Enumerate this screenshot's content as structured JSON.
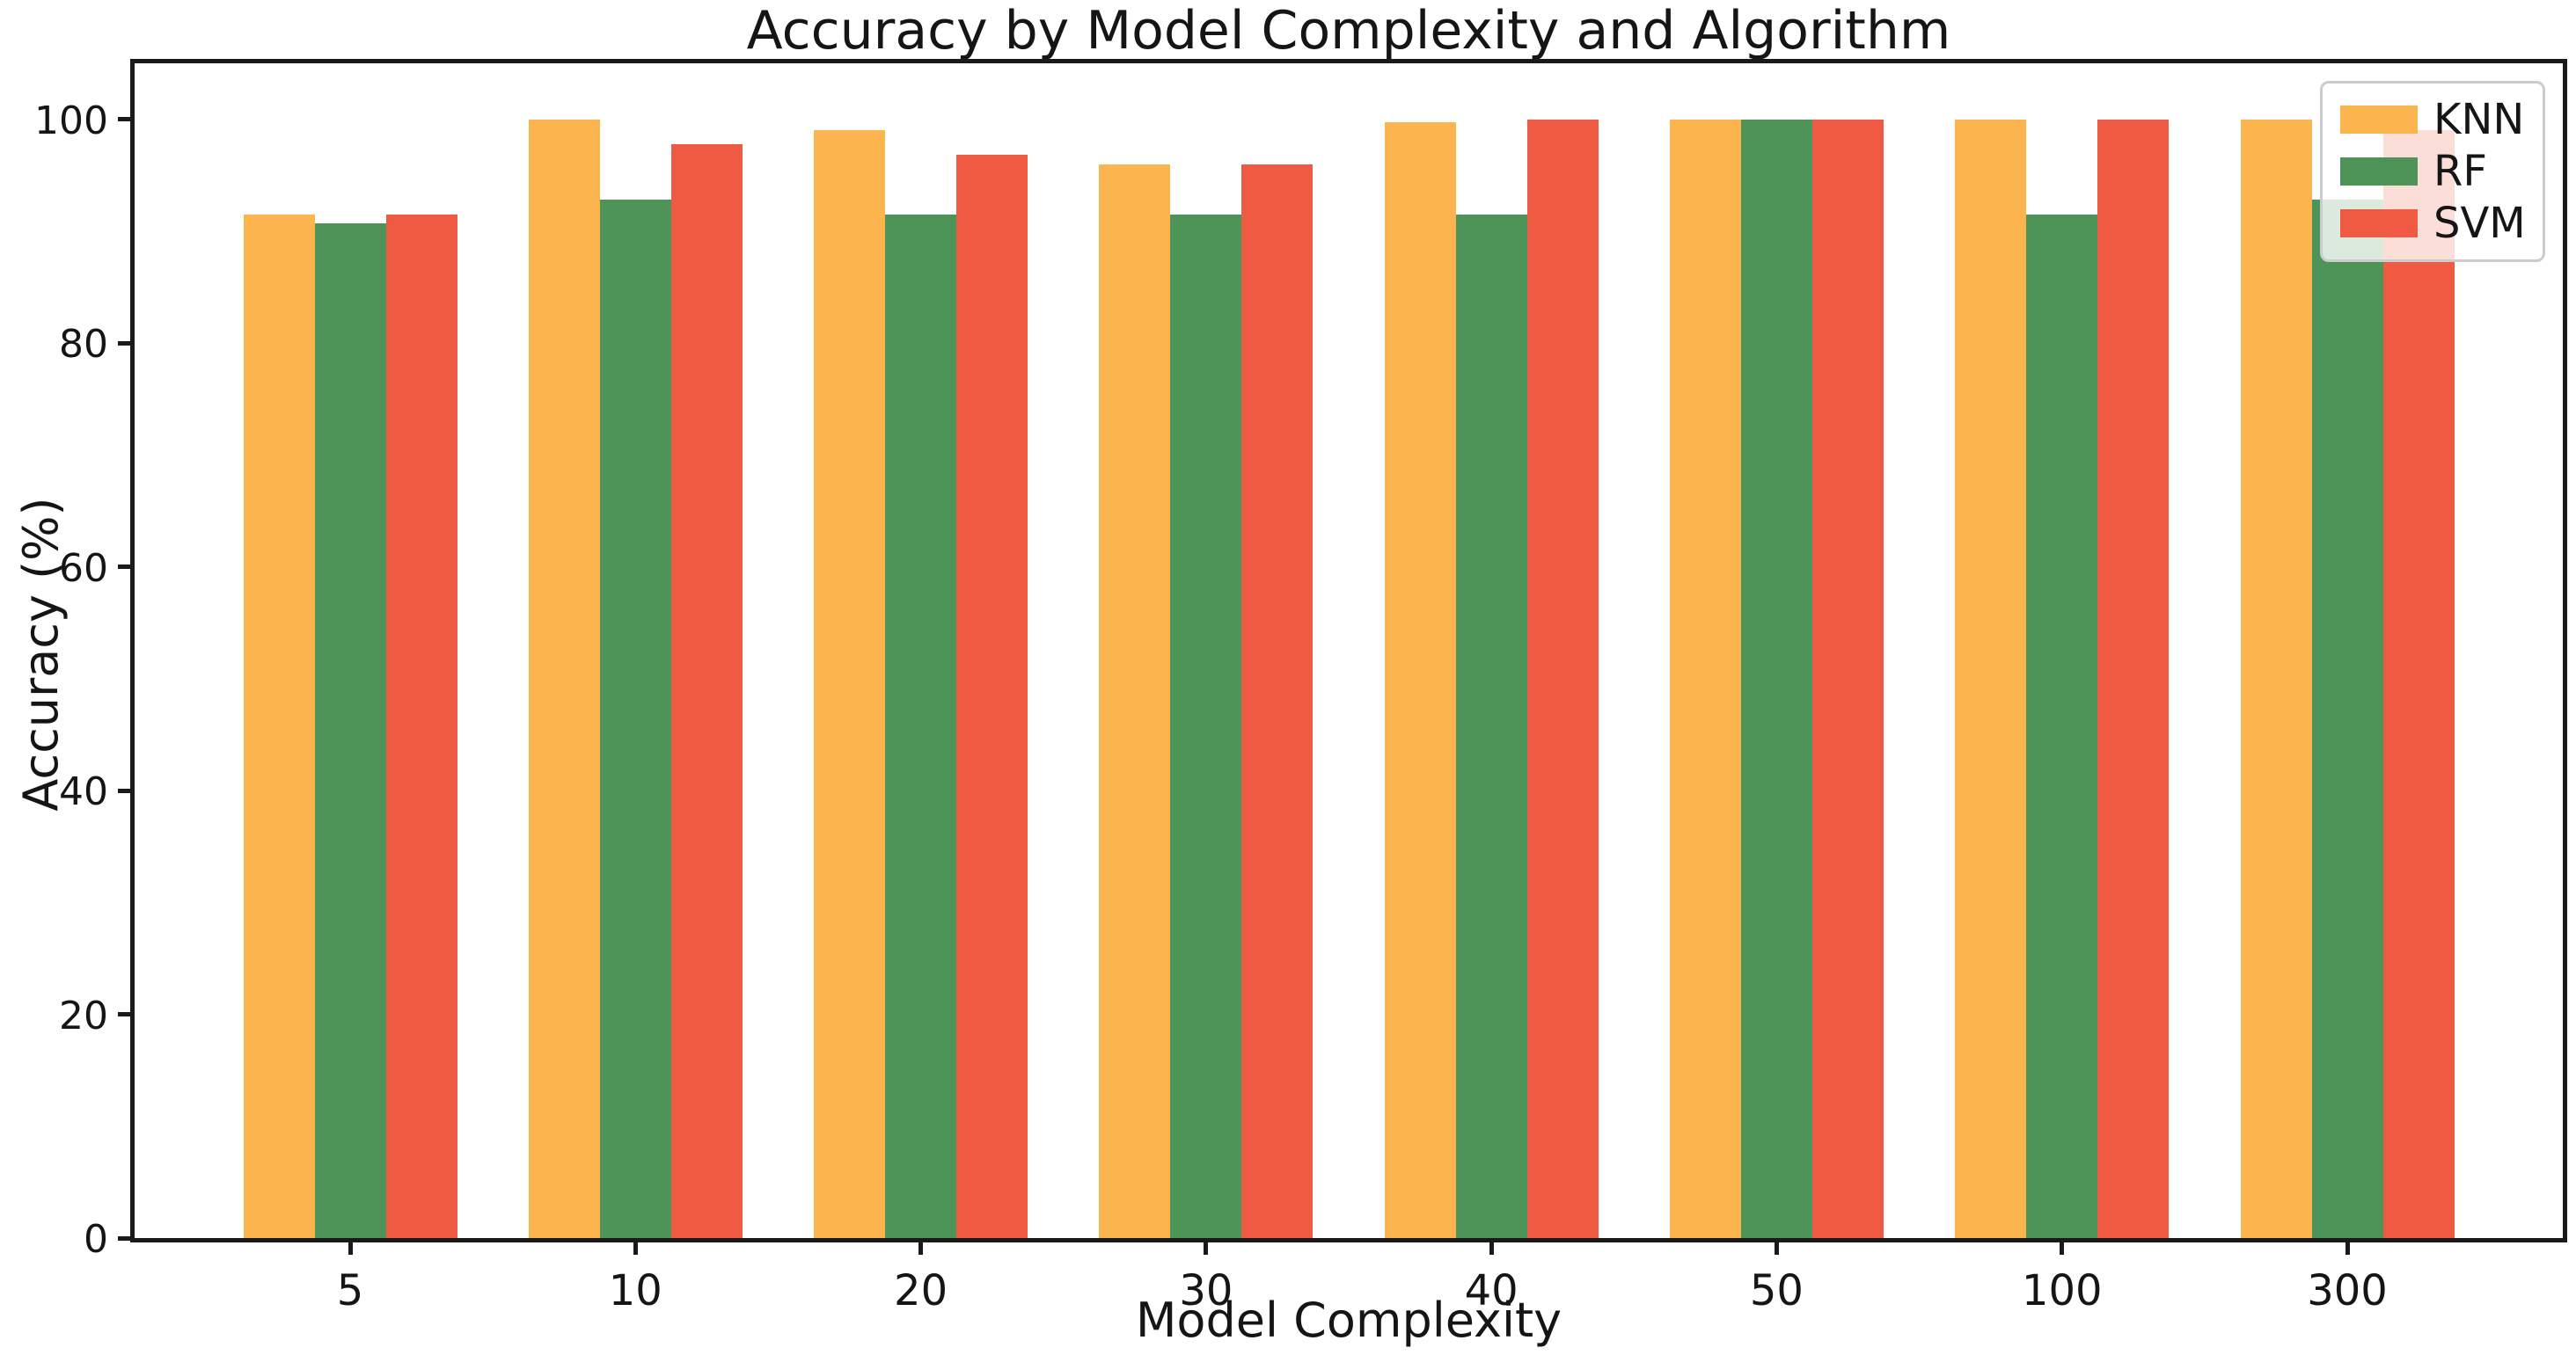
{
  "chart_data": {
    "type": "bar",
    "title": "Accuracy by Model Complexity and Algorithm",
    "xlabel": "Model Complexity",
    "ylabel": "Accuracy (%)",
    "categories": [
      "5",
      "10",
      "20",
      "30",
      "40",
      "50",
      "100",
      "300"
    ],
    "series": [
      {
        "name": "KNN",
        "color": "#FBB44E",
        "values": [
          91.5,
          100.0,
          99.0,
          96.0,
          99.7,
          100.0,
          100.0,
          100.0
        ]
      },
      {
        "name": "RF",
        "color": "#4E9458",
        "values": [
          90.7,
          92.8,
          91.5,
          91.5,
          91.5,
          100.0,
          91.5,
          92.8
        ]
      },
      {
        "name": "SVM",
        "color": "#EF5B42",
        "values": [
          91.5,
          97.8,
          96.8,
          96.0,
          100.0,
          100.0,
          100.0,
          99.0
        ]
      }
    ],
    "ylim": [
      0,
      105
    ],
    "yticks": [
      "0",
      "20",
      "40",
      "60",
      "80",
      "100"
    ],
    "ytick_values": [
      0,
      20,
      40,
      60,
      80,
      100
    ],
    "grid": "off",
    "legend_position": "upper right",
    "bar_width_fraction": 0.25,
    "text_color": "#151515",
    "spine_color": "#1a1a1a"
  }
}
